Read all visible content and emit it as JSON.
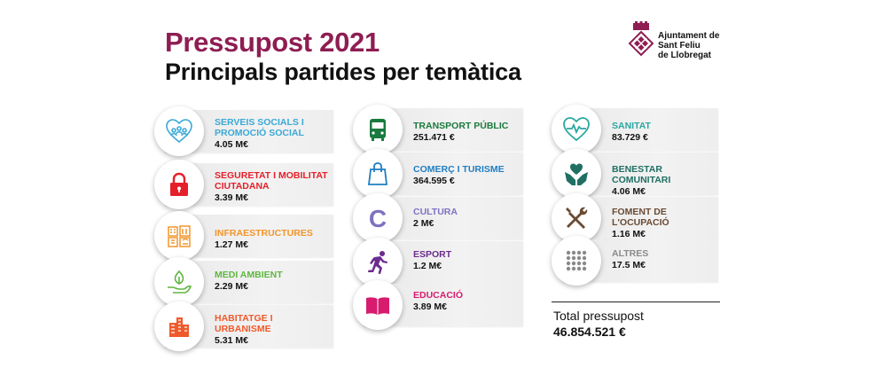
{
  "header": {
    "title": "Pressupost 2021",
    "subtitle": "Principals partides per temàtica"
  },
  "logo": {
    "line1": "Ajuntament de",
    "line2": "Sant Feliu",
    "line3": "de Llobregat"
  },
  "items": [
    {
      "name": "SERVEIS SOCIALS I PROMOCIÓ SOCIAL",
      "value": "4.05 M€",
      "color": "#3aa9d6",
      "icon": "people-heart-icon"
    },
    {
      "name": "SEGURETAT I MOBILITAT CIUTADANA",
      "value": "3.39 M€",
      "color": "#e5202a",
      "icon": "lock-icon"
    },
    {
      "name": "INFRAESTRUCTURES",
      "value": "1.27 M€",
      "color": "#f2952b",
      "icon": "buildings-icon"
    },
    {
      "name": "MEDI AMBIENT",
      "value": "2.29 M€",
      "color": "#5fb641",
      "icon": "hand-leaf-icon"
    },
    {
      "name": "HABITATGE I URBANISME",
      "value": "5.31 M€",
      "color": "#ef5a2b",
      "icon": "housing-icon"
    },
    {
      "name": "TRANSPORT PÚBLIC",
      "value": "251.471 €",
      "color": "#1a7a3e",
      "icon": "bus-icon"
    },
    {
      "name": "COMERÇ I TURISME",
      "value": "364.595 €",
      "color": "#1f7ec2",
      "icon": "shopping-bag-icon"
    },
    {
      "name": "CULTURA",
      "value": "2 M€",
      "color": "#7e72c0",
      "icon": "culture-c-icon"
    },
    {
      "name": "ESPORT",
      "value": "1.2 M€",
      "color": "#6b2c8e",
      "icon": "runner-icon"
    },
    {
      "name": "EDUCACIÓ",
      "value": "3.89 M€",
      "color": "#d81b6e",
      "icon": "book-icon"
    },
    {
      "name": "SANITAT",
      "value": "83.729 €",
      "color": "#2aa8a0",
      "icon": "heartbeat-icon"
    },
    {
      "name": "BENESTAR COMUNITARI",
      "value": "4.06 M€",
      "color": "#1f6f63",
      "icon": "hands-heart-icon"
    },
    {
      "name": "FOMENT DE L'OCUPACIÓ",
      "value": "1.16 M€",
      "color": "#6a4a33",
      "icon": "tools-icon"
    },
    {
      "name": "ALTRES",
      "value": "17.5 M€",
      "color": "#8a8a8a",
      "icon": "dots-grid-icon"
    }
  ],
  "total": {
    "label": "Total pressupost",
    "value": "46.854.521 €"
  }
}
